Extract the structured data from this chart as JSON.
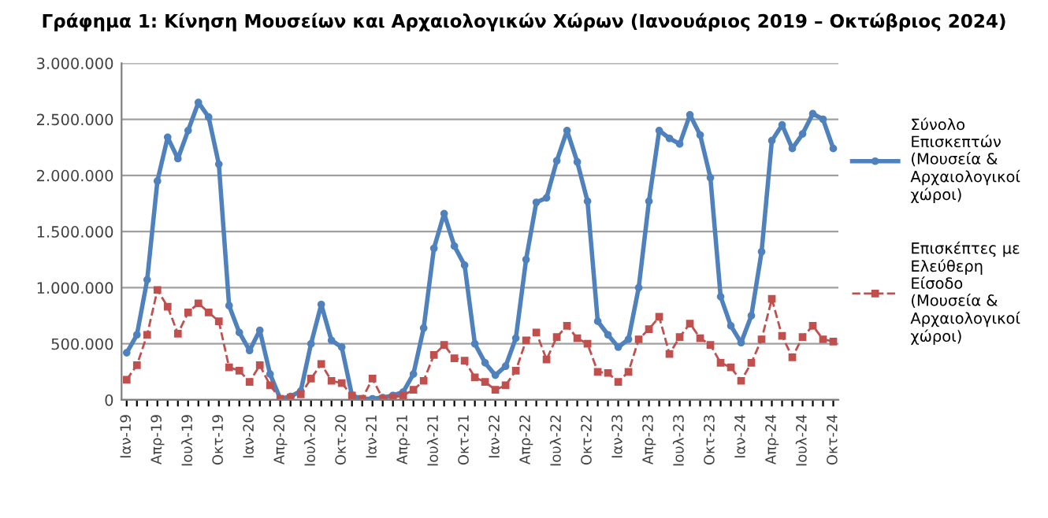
{
  "chart_data": {
    "type": "line",
    "title": "Γράφημα 1: Κίνηση Μουσείων και Αρχαιολογικών Χώρων (Ιανουάριος 2019 – Οκτώβριος 2024)",
    "categories": [
      "Ιαν-19",
      null,
      null,
      "Απρ-19",
      null,
      null,
      "Ιουλ-19",
      null,
      null,
      "Οκτ-19",
      null,
      null,
      "Ιαν-20",
      null,
      null,
      "Απρ-20",
      null,
      null,
      "Ιουλ-20",
      null,
      null,
      "Οκτ-20",
      null,
      null,
      "Ιαν-21",
      null,
      null,
      "Απρ-21",
      null,
      null,
      "Ιουλ-21",
      null,
      null,
      "Οκτ-21",
      null,
      null,
      "Ιαν-22",
      null,
      null,
      "Απρ-22",
      null,
      null,
      "Ιουλ-22",
      null,
      null,
      "Οκτ-22",
      null,
      null,
      "Ιαν-23",
      null,
      null,
      "Απρ-23",
      null,
      null,
      "Ιουλ-23",
      null,
      null,
      "Οκτ-23",
      null,
      null,
      "Ιαν-24",
      null,
      null,
      "Απρ-24",
      null,
      null,
      "Ιουλ-24",
      null,
      null,
      "Οκτ-24"
    ],
    "series": [
      {
        "name": "Σύνολο Επισκεπτών (Μουσεία & Αρχαιολογικοί χώροι)",
        "color": "#4f81bd",
        "marker": "circle",
        "line_style": "solid",
        "values": [
          420000,
          580000,
          1070000,
          1950000,
          2340000,
          2150000,
          2400000,
          2650000,
          2520000,
          2100000,
          840000,
          600000,
          440000,
          620000,
          230000,
          10000,
          30000,
          80000,
          500000,
          850000,
          530000,
          470000,
          40000,
          10000,
          10000,
          20000,
          40000,
          70000,
          230000,
          640000,
          1350000,
          1660000,
          1370000,
          1200000,
          500000,
          330000,
          220000,
          300000,
          550000,
          1250000,
          1760000,
          1800000,
          2130000,
          2400000,
          2120000,
          1770000,
          700000,
          580000,
          470000,
          540000,
          1000000,
          1770000,
          2400000,
          2330000,
          2280000,
          2540000,
          2360000,
          1980000,
          920000,
          660000,
          510000,
          750000,
          1320000,
          2310000,
          2450000,
          2240000,
          2370000,
          2550000,
          2500000,
          2240000
        ]
      },
      {
        "name": "Επισκέπτες με Ελεύθερη Είσοδο (Μουσεία & Αρχαιολογικοί χώροι)",
        "color": "#c0504d",
        "marker": "square",
        "line_style": "dashed",
        "values": [
          180000,
          310000,
          580000,
          980000,
          830000,
          590000,
          780000,
          860000,
          780000,
          700000,
          290000,
          260000,
          160000,
          310000,
          130000,
          10000,
          20000,
          50000,
          190000,
          320000,
          170000,
          150000,
          40000,
          10000,
          190000,
          10000,
          20000,
          40000,
          90000,
          170000,
          400000,
          490000,
          370000,
          350000,
          200000,
          160000,
          90000,
          130000,
          260000,
          530000,
          600000,
          360000,
          560000,
          660000,
          550000,
          500000,
          250000,
          240000,
          160000,
          250000,
          540000,
          630000,
          740000,
          410000,
          560000,
          680000,
          550000,
          490000,
          330000,
          290000,
          170000,
          330000,
          540000,
          900000,
          570000,
          380000,
          560000,
          660000,
          540000,
          520000
        ]
      }
    ],
    "ylim": [
      0,
      3000000
    ],
    "yticks": [
      0,
      {
        "value": 500000,
        "label": "500.000"
      },
      {
        "value": 1000000,
        "label": "1.000.000"
      },
      {
        "value": 1500000,
        "label": "1.500.000"
      },
      {
        "value": 2000000,
        "label": "2.000.000"
      },
      {
        "value": 2500000,
        "label": "2.500.000"
      },
      {
        "value": 3000000,
        "label": "3.000.000"
      }
    ],
    "grid": "y",
    "legend": "right"
  }
}
